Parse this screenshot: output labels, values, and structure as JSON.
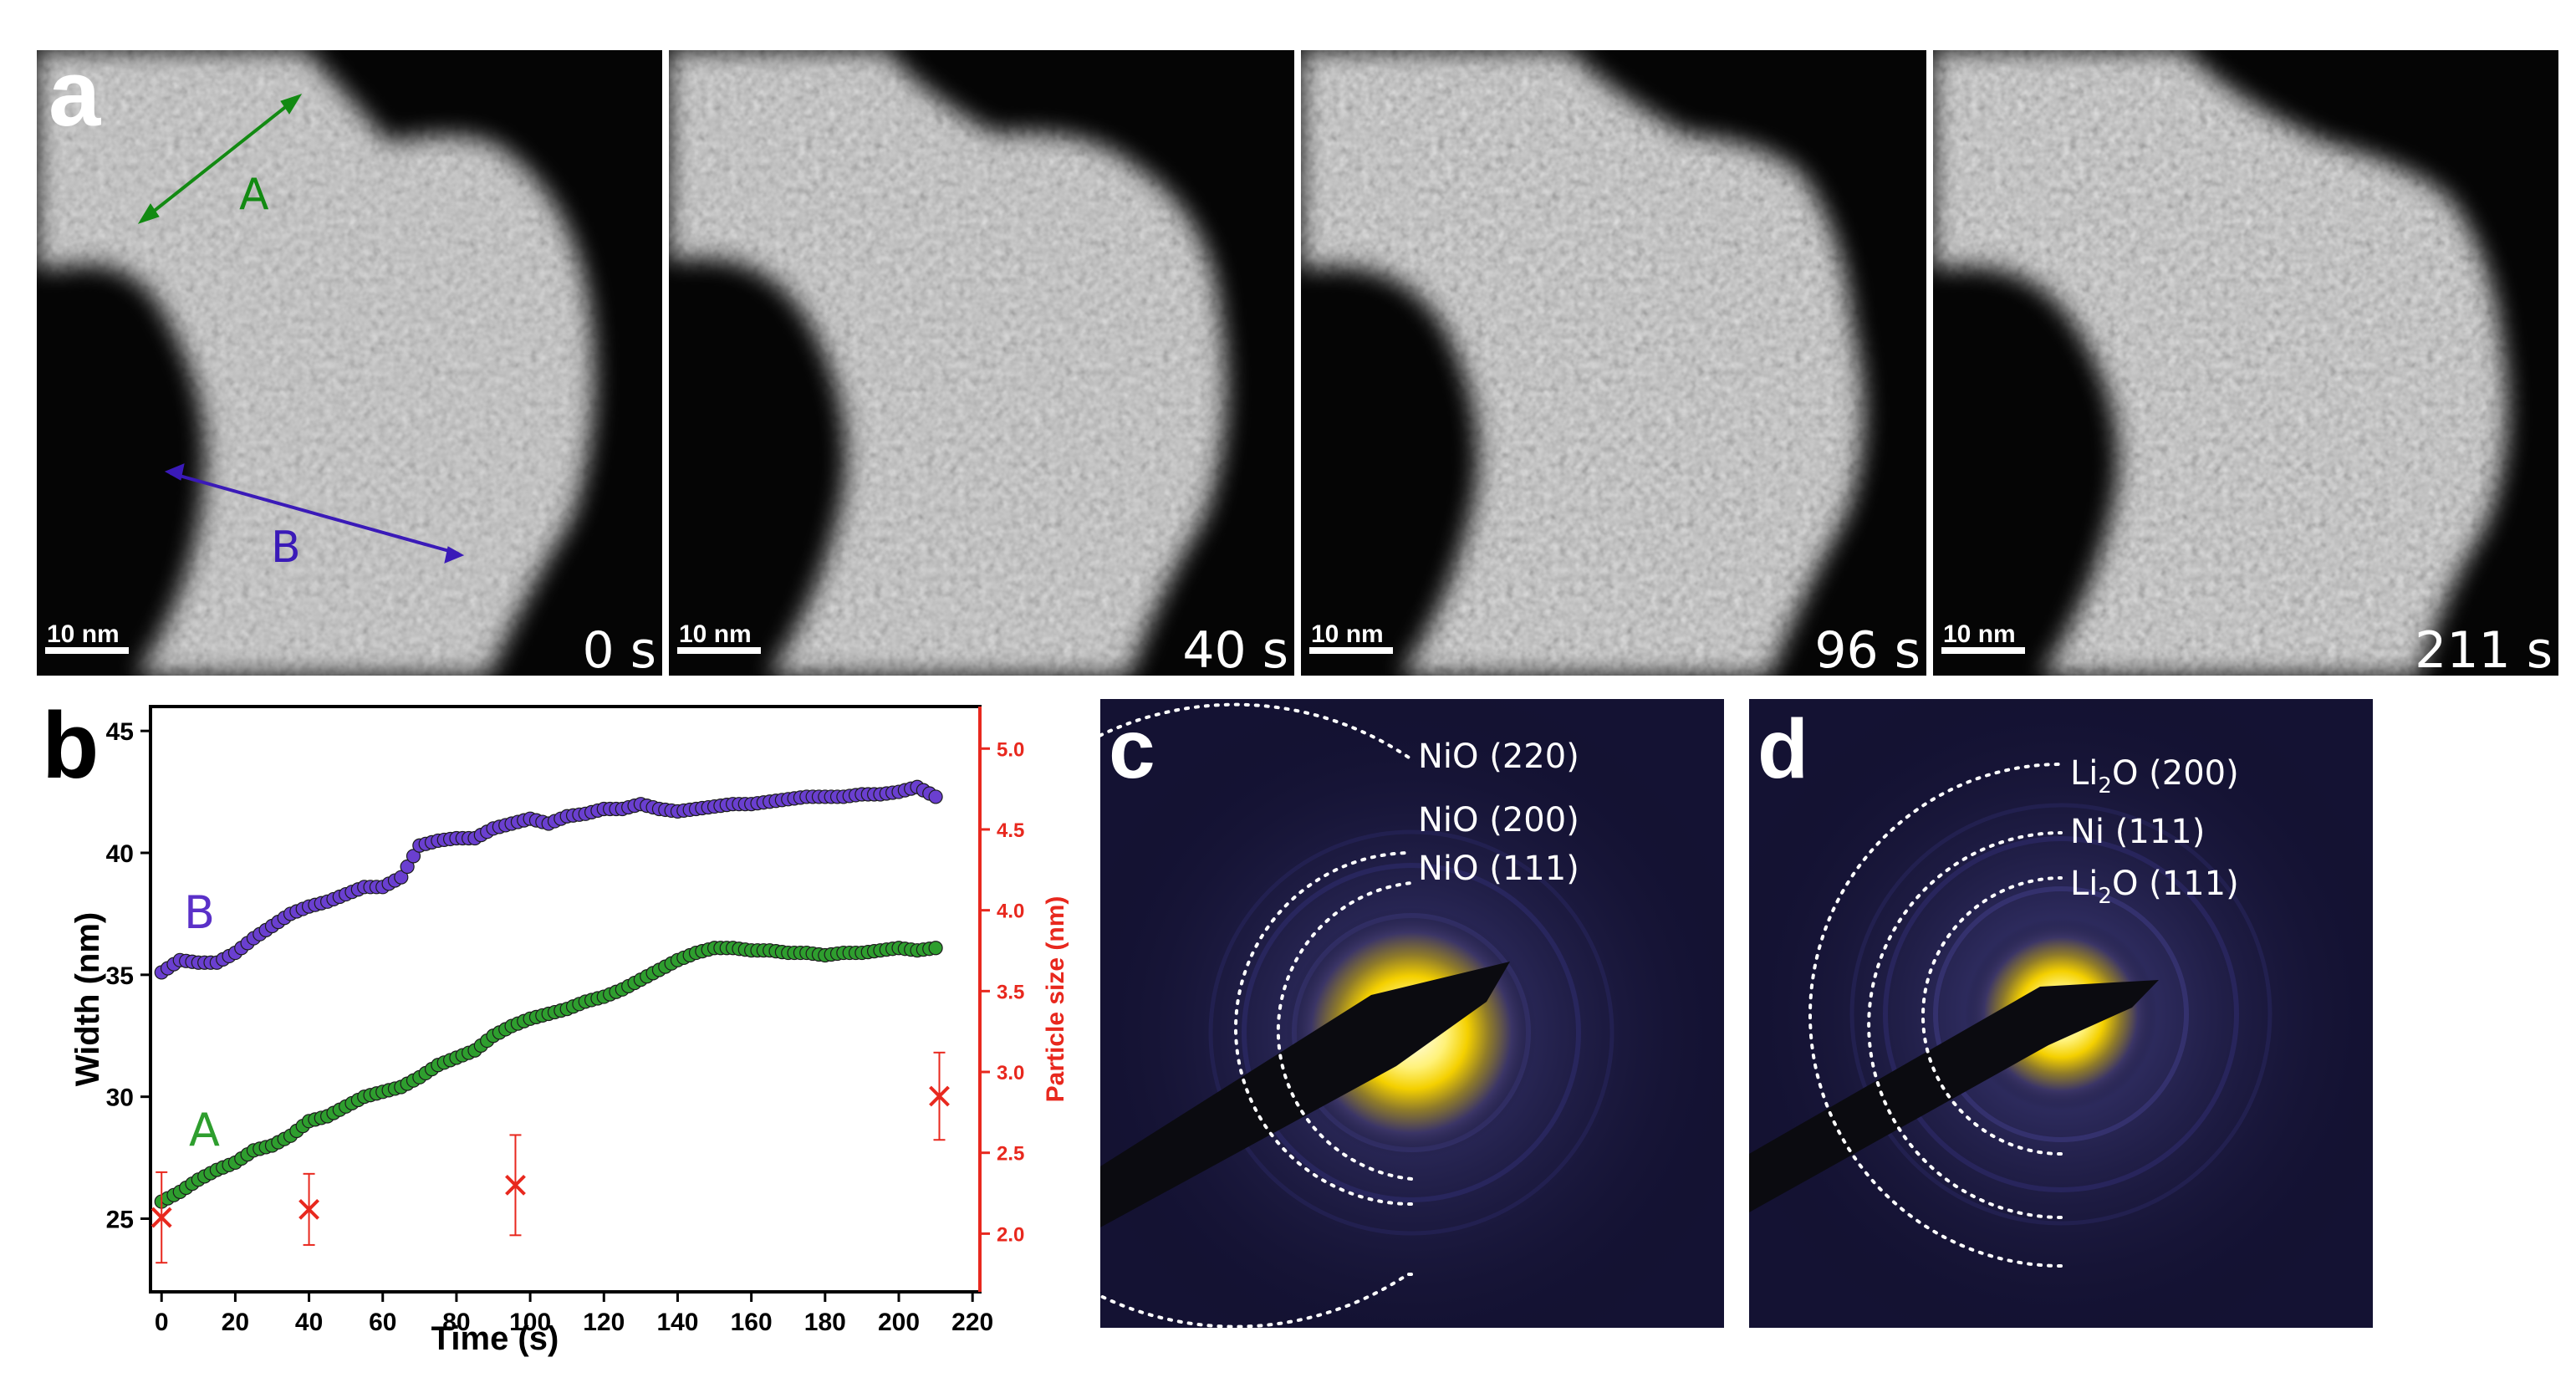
{
  "panel_a": {
    "letter": "a",
    "frames": [
      {
        "time": "0 s",
        "scale_bar": "10 nm"
      },
      {
        "time": "40 s",
        "scale_bar": "10 nm"
      },
      {
        "time": "96 s",
        "scale_bar": "10 nm"
      },
      {
        "time": "211 s",
        "scale_bar": "10 nm"
      }
    ],
    "arrow_labels": {
      "A": "A",
      "B": "B"
    },
    "colors": {
      "A": "#128a12",
      "B": "#3a1ab8"
    }
  },
  "panel_c": {
    "letter": "c",
    "rings": [
      {
        "label": "NiO (220)"
      },
      {
        "label": "NiO (200)"
      },
      {
        "label": "NiO (111)"
      }
    ]
  },
  "panel_d": {
    "letter": "d",
    "rings": [
      {
        "label": "Li2O (200)",
        "base": "Li",
        "sub": "2",
        "rest": "O (200)"
      },
      {
        "label": "Ni (111)"
      },
      {
        "label": "Li2O (111)",
        "base": "Li",
        "sub": "2",
        "rest": "O (111)"
      }
    ]
  },
  "chart_data": {
    "type": "scatter",
    "panel_letter": "b",
    "xlabel": "Time (s)",
    "ylabel": "Width (nm)",
    "y2label": "Particle size (nm)",
    "xlim": [
      -3,
      222
    ],
    "ylim": [
      22,
      46
    ],
    "y2lim": [
      1.64,
      5.26
    ],
    "xticks": [
      0,
      20,
      40,
      60,
      80,
      100,
      120,
      140,
      160,
      180,
      200,
      220
    ],
    "yticks": [
      25,
      30,
      35,
      40,
      45
    ],
    "y2ticks": [
      2.0,
      2.5,
      3.0,
      3.5,
      4.0,
      4.5,
      5.0
    ],
    "series": [
      {
        "name": "B",
        "axis": "left",
        "color": "#6a3fd0",
        "x": [
          0,
          5,
          10,
          15,
          20,
          25,
          30,
          35,
          40,
          45,
          50,
          55,
          60,
          65,
          70,
          75,
          80,
          85,
          90,
          95,
          100,
          105,
          110,
          115,
          120,
          125,
          130,
          135,
          140,
          145,
          150,
          155,
          160,
          165,
          170,
          175,
          180,
          185,
          190,
          195,
          200,
          205,
          210
        ],
        "values": [
          35.1,
          35.6,
          35.5,
          35.5,
          35.9,
          36.5,
          37.0,
          37.5,
          37.8,
          38.0,
          38.3,
          38.6,
          38.6,
          39.0,
          40.3,
          40.5,
          40.6,
          40.6,
          41.0,
          41.2,
          41.4,
          41.2,
          41.5,
          41.6,
          41.8,
          41.8,
          42.0,
          41.8,
          41.7,
          41.8,
          41.9,
          42.0,
          42.0,
          42.1,
          42.2,
          42.3,
          42.3,
          42.3,
          42.4,
          42.4,
          42.5,
          42.7,
          42.3
        ]
      },
      {
        "name": "A",
        "axis": "left",
        "color": "#2e9e2e",
        "x": [
          0,
          5,
          10,
          15,
          20,
          25,
          30,
          35,
          40,
          45,
          50,
          55,
          60,
          65,
          70,
          75,
          80,
          85,
          90,
          95,
          100,
          105,
          110,
          115,
          120,
          125,
          130,
          135,
          140,
          145,
          150,
          155,
          160,
          165,
          170,
          175,
          180,
          185,
          190,
          195,
          200,
          205,
          210
        ],
        "values": [
          25.7,
          26.1,
          26.6,
          27.0,
          27.3,
          27.8,
          28.0,
          28.4,
          29.0,
          29.2,
          29.6,
          30.0,
          30.2,
          30.4,
          30.8,
          31.3,
          31.6,
          31.9,
          32.5,
          32.9,
          33.2,
          33.4,
          33.6,
          33.9,
          34.1,
          34.4,
          34.8,
          35.2,
          35.6,
          35.9,
          36.1,
          36.1,
          36.0,
          36.0,
          35.9,
          35.9,
          35.8,
          35.9,
          35.9,
          36.0,
          36.1,
          36.0,
          36.1
        ]
      },
      {
        "name": "Particle size",
        "axis": "right",
        "color": "#e8281e",
        "x": [
          0,
          40,
          96,
          211
        ],
        "values": [
          2.1,
          2.15,
          2.3,
          2.85
        ],
        "errors": [
          0.28,
          0.22,
          0.31,
          0.27
        ]
      }
    ]
  }
}
